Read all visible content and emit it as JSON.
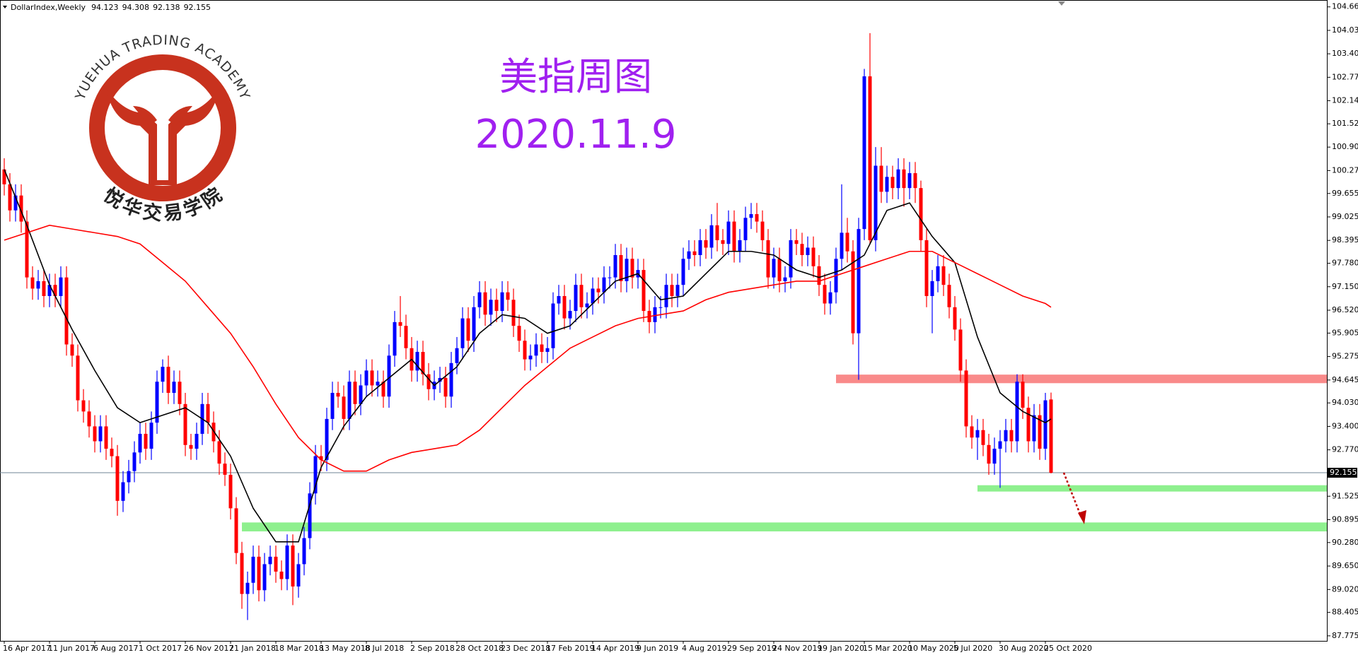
{
  "chart_data": {
    "type": "candlestick",
    "symbol": "DollarIndex,Weekly",
    "title": "美指周图",
    "subtitle": "2020.11.9",
    "categories": [
      "16 Apr 2017",
      null,
      null,
      null,
      null,
      null,
      null,
      null,
      "11 Jun 2017",
      null,
      null,
      null,
      null,
      null,
      null,
      null,
      "6 Aug 2017",
      null,
      null,
      null,
      null,
      null,
      null,
      null,
      "1 Oct 2017",
      null,
      null,
      null,
      null,
      null,
      null,
      null,
      "26 Nov 2017",
      null,
      null,
      null,
      null,
      null,
      null,
      null,
      "21 Jan 2018",
      null,
      null,
      null,
      null,
      null,
      null,
      null,
      "18 Mar 2018",
      null,
      null,
      null,
      null,
      null,
      null,
      null,
      "13 May 2018",
      null,
      null,
      null,
      null,
      null,
      null,
      null,
      "8 Jul 2018",
      null,
      null,
      null,
      null,
      null,
      null,
      null,
      "2 Sep 2018",
      null,
      null,
      null,
      null,
      null,
      null,
      null,
      "28 Oct 2018",
      null,
      null,
      null,
      null,
      null,
      null,
      null,
      "23 Dec 2018",
      null,
      null,
      null,
      null,
      null,
      null,
      null,
      "17 Feb 2019",
      null,
      null,
      null,
      null,
      null,
      null,
      null,
      "14 Apr 2019",
      null,
      null,
      null,
      null,
      null,
      null,
      null,
      "9 Jun 2019",
      null,
      null,
      null,
      null,
      null,
      null,
      null,
      "4 Aug 2019",
      null,
      null,
      null,
      null,
      null,
      null,
      null,
      "29 Sep 2019",
      null,
      null,
      null,
      null,
      null,
      null,
      null,
      "24 Nov 2019",
      null,
      null,
      null,
      null,
      null,
      null,
      null,
      "19 Jan 2020",
      null,
      null,
      null,
      null,
      null,
      null,
      null,
      "15 Mar 2020",
      null,
      null,
      null,
      null,
      null,
      null,
      null,
      "10 May 2020",
      null,
      null,
      null,
      null,
      null,
      null,
      null,
      "5 Jul 2020",
      null,
      null,
      null,
      null,
      null,
      null,
      null,
      "30 Aug 2020",
      null,
      null,
      null,
      null,
      null,
      null,
      null,
      "25 Oct 2020",
      null
    ],
    "open": [
      100.3,
      99.9,
      99.2,
      99.6,
      98.9,
      97.4,
      97.1,
      97.3,
      96.9,
      97.2,
      96.9,
      97.4,
      95.6,
      95.3,
      94.1,
      93.8,
      93.4,
      93.0,
      93.4,
      92.8,
      92.6,
      91.4,
      91.9,
      92.2,
      92.7,
      93.2,
      92.8,
      93.5,
      94.6,
      95.0,
      94.3,
      94.6,
      94.0,
      92.9,
      92.8,
      93.2,
      94.0,
      93.5,
      93.0,
      92.4,
      92.1,
      91.2,
      90.0,
      88.9,
      89.2,
      89.9,
      89.0,
      89.7,
      89.9,
      89.5,
      89.3,
      90.2,
      89.1,
      89.7,
      90.4,
      91.6,
      92.6,
      92.5,
      93.6,
      94.3,
      94.2,
      93.6,
      94.6,
      94.0,
      94.5,
      94.9,
      94.5,
      94.6,
      94.2,
      95.3,
      96.2,
      96.1,
      95.5,
      94.9,
      95.4,
      94.8,
      94.4,
      94.6,
      94.7,
      94.2,
      95.1,
      95.5,
      96.3,
      95.7,
      96.6,
      97.0,
      96.4,
      96.8,
      96.5,
      97.0,
      96.8,
      96.1,
      95.7,
      95.2,
      95.3,
      95.6,
      95.4,
      95.5,
      96.7,
      96.9,
      96.3,
      96.5,
      97.2,
      96.6,
      96.7,
      97.1,
      97.0,
      97.4,
      97.4,
      98.0,
      97.3,
      97.9,
      97.4,
      97.6,
      96.5,
      96.2,
      96.6,
      96.6,
      97.2,
      96.9,
      97.2,
      97.9,
      98.1,
      98.0,
      98.4,
      98.2,
      98.8,
      98.4,
      98.3,
      98.9,
      98.1,
      98.4,
      99.0,
      99.1,
      98.9,
      98.4,
      97.4,
      97.9,
      97.3,
      97.4,
      98.4,
      98.3,
      98.0,
      98.2,
      97.7,
      97.2,
      96.7,
      97.0,
      97.9,
      98.6,
      98.1,
      95.9,
      98.7,
      102.8,
      98.4,
      100.4,
      99.7,
      100.1,
      99.8,
      100.3,
      99.8,
      100.2,
      99.8,
      98.4,
      96.9,
      97.3,
      97.7,
      97.2,
      96.6,
      96.0,
      94.9,
      93.4,
      93.1,
      93.3,
      92.9,
      92.4,
      92.8,
      93.0,
      93.3,
      93.0,
      94.6,
      93.9,
      93.0,
      93.7,
      92.8,
      94.123
    ],
    "high": [
      100.6,
      100.2,
      99.9,
      99.9,
      99.2,
      97.7,
      97.6,
      97.6,
      97.5,
      97.5,
      97.7,
      97.7,
      95.9,
      95.6,
      94.4,
      94.1,
      93.7,
      93.7,
      93.7,
      93.1,
      92.9,
      92.2,
      92.5,
      93.0,
      93.5,
      93.5,
      93.8,
      94.9,
      95.2,
      95.3,
      94.9,
      94.9,
      94.3,
      93.2,
      93.5,
      94.3,
      94.3,
      93.8,
      93.3,
      92.7,
      92.4,
      91.5,
      90.3,
      89.5,
      90.2,
      90.2,
      90.0,
      90.2,
      90.2,
      89.8,
      90.5,
      90.5,
      90.0,
      90.7,
      91.9,
      92.9,
      92.9,
      93.9,
      94.6,
      94.6,
      94.5,
      94.9,
      94.9,
      94.8,
      95.2,
      95.2,
      94.9,
      94.9,
      95.6,
      96.5,
      96.9,
      96.4,
      95.8,
      95.7,
      95.7,
      95.1,
      94.9,
      95.0,
      95.0,
      95.4,
      95.8,
      96.6,
      96.6,
      96.9,
      97.3,
      97.3,
      97.1,
      97.1,
      97.3,
      97.3,
      97.1,
      96.4,
      96.0,
      95.6,
      95.9,
      95.9,
      95.8,
      97.0,
      97.2,
      97.2,
      96.8,
      97.5,
      97.5,
      97.0,
      97.4,
      97.4,
      97.7,
      97.7,
      98.3,
      98.3,
      98.2,
      98.2,
      97.9,
      97.9,
      96.8,
      96.9,
      96.9,
      97.5,
      97.5,
      97.5,
      98.2,
      98.4,
      98.4,
      98.7,
      98.7,
      99.1,
      99.4,
      98.7,
      99.2,
      99.2,
      98.7,
      99.3,
      99.4,
      99.4,
      99.2,
      98.7,
      98.2,
      98.2,
      97.7,
      98.7,
      98.7,
      98.6,
      98.5,
      98.5,
      98.0,
      97.5,
      97.3,
      98.2,
      99.9,
      99.0,
      98.4,
      99.0,
      103.0,
      103.96,
      100.9,
      100.9,
      100.4,
      100.4,
      100.6,
      100.6,
      100.5,
      100.5,
      100.0,
      98.7,
      97.6,
      98.0,
      98.0,
      97.5,
      96.9,
      96.3,
      95.2,
      93.7,
      93.6,
      93.6,
      93.2,
      93.1,
      93.3,
      93.6,
      93.6,
      94.8,
      94.8,
      94.2,
      94.0,
      94.0,
      94.3,
      94.308
    ],
    "low": [
      99.6,
      98.9,
      98.9,
      98.6,
      97.1,
      96.8,
      96.8,
      96.6,
      96.6,
      96.6,
      96.6,
      95.3,
      95.0,
      93.8,
      93.5,
      93.1,
      92.7,
      92.7,
      92.5,
      92.3,
      91.0,
      91.1,
      91.6,
      91.9,
      92.4,
      92.5,
      92.5,
      93.2,
      94.3,
      94.0,
      94.0,
      93.7,
      92.6,
      92.5,
      92.5,
      92.9,
      93.2,
      92.7,
      92.1,
      91.8,
      90.9,
      89.7,
      88.5,
      88.2,
      88.9,
      88.7,
      88.7,
      89.4,
      89.2,
      89.0,
      89.0,
      88.6,
      88.8,
      89.4,
      90.1,
      91.3,
      92.2,
      92.2,
      93.3,
      93.9,
      93.3,
      93.3,
      93.7,
      93.7,
      94.2,
      94.2,
      94.2,
      93.9,
      93.9,
      95.0,
      95.8,
      95.2,
      94.6,
      94.6,
      94.5,
      94.1,
      94.1,
      94.3,
      93.9,
      93.9,
      94.8,
      95.2,
      95.4,
      95.4,
      96.3,
      96.1,
      96.1,
      96.2,
      96.2,
      96.5,
      95.8,
      95.4,
      94.9,
      94.9,
      95.0,
      95.1,
      95.1,
      95.2,
      96.4,
      96.0,
      96.0,
      96.2,
      96.3,
      96.3,
      96.4,
      96.7,
      96.7,
      97.1,
      97.1,
      97.0,
      97.0,
      97.1,
      97.1,
      96.2,
      95.9,
      95.9,
      96.3,
      96.3,
      96.6,
      96.6,
      96.9,
      97.6,
      97.7,
      97.7,
      97.9,
      97.9,
      98.1,
      98.0,
      98.0,
      97.8,
      97.8,
      98.1,
      98.7,
      98.6,
      98.1,
      97.1,
      97.1,
      97.0,
      97.0,
      97.1,
      98.0,
      97.7,
      97.7,
      97.4,
      96.9,
      96.4,
      96.4,
      96.7,
      97.6,
      97.8,
      95.6,
      94.65,
      98.4,
      98.3,
      98.1,
      99.4,
      99.4,
      99.5,
      99.5,
      99.3,
      99.5,
      99.4,
      98.1,
      96.6,
      95.9,
      97.0,
      96.9,
      96.3,
      95.7,
      94.6,
      93.1,
      92.8,
      92.5,
      92.6,
      92.1,
      92.1,
      91.75,
      92.7,
      92.7,
      92.7,
      93.6,
      92.7,
      92.7,
      92.5,
      92.5,
      92.138
    ],
    "close": [
      99.9,
      99.2,
      99.6,
      98.9,
      97.4,
      97.1,
      97.3,
      96.9,
      97.2,
      96.9,
      97.4,
      95.6,
      95.3,
      94.1,
      93.8,
      93.4,
      93.0,
      93.4,
      92.8,
      92.6,
      91.4,
      91.9,
      92.2,
      92.7,
      93.2,
      92.8,
      93.5,
      94.6,
      95.0,
      94.3,
      94.6,
      94.0,
      92.9,
      92.8,
      93.2,
      94.0,
      93.5,
      93.0,
      92.4,
      92.1,
      91.2,
      90.0,
      88.9,
      89.2,
      89.9,
      89.0,
      89.7,
      89.9,
      89.5,
      89.3,
      90.2,
      89.1,
      89.7,
      90.4,
      91.6,
      92.6,
      92.5,
      93.6,
      94.3,
      94.2,
      93.6,
      94.6,
      94.0,
      94.5,
      94.9,
      94.5,
      94.6,
      94.2,
      95.3,
      96.2,
      96.1,
      95.5,
      94.9,
      95.4,
      94.8,
      94.4,
      94.6,
      94.7,
      94.2,
      95.1,
      95.5,
      96.3,
      95.7,
      96.6,
      97.0,
      96.4,
      96.8,
      96.5,
      97.0,
      96.8,
      96.1,
      95.7,
      95.2,
      95.3,
      95.6,
      95.4,
      95.5,
      96.7,
      96.9,
      96.3,
      96.5,
      97.2,
      96.6,
      96.7,
      97.1,
      97.0,
      97.4,
      97.4,
      98.0,
      97.3,
      97.9,
      97.4,
      97.6,
      96.5,
      96.2,
      96.6,
      96.6,
      97.2,
      96.9,
      97.2,
      97.9,
      98.1,
      98.0,
      98.4,
      98.2,
      98.8,
      98.4,
      98.3,
      98.9,
      98.1,
      98.4,
      99.0,
      99.1,
      98.9,
      98.4,
      97.4,
      97.9,
      97.3,
      97.4,
      98.4,
      98.3,
      98.0,
      98.2,
      97.7,
      97.2,
      96.7,
      97.0,
      97.9,
      98.6,
      98.1,
      95.9,
      98.7,
      102.8,
      98.4,
      100.4,
      99.7,
      100.1,
      99.8,
      100.3,
      99.8,
      100.2,
      99.8,
      98.4,
      96.9,
      97.3,
      97.7,
      97.2,
      96.6,
      96.0,
      94.9,
      93.4,
      93.1,
      93.3,
      92.9,
      92.4,
      92.8,
      93.0,
      93.3,
      93.0,
      94.6,
      93.9,
      93.0,
      93.7,
      92.8,
      94.1,
      92.155
    ],
    "up_color": "#0000ff",
    "down_color": "#ff0000",
    "series": [
      {
        "color": "#000000",
        "x": [
          0,
          4,
          8,
          12,
          16,
          20,
          24,
          28,
          32,
          36,
          40,
          44,
          48,
          52,
          56,
          60,
          64,
          68,
          72,
          76,
          80,
          84,
          88,
          92,
          96,
          100,
          104,
          108,
          112,
          116,
          120,
          124,
          128,
          132,
          136,
          140,
          144,
          148,
          152,
          156,
          160,
          164,
          168,
          172,
          176,
          180,
          184,
          185
        ],
        "values": [
          100.3,
          98.8,
          97.2,
          96.0,
          94.9,
          93.9,
          93.5,
          93.7,
          93.9,
          93.5,
          92.6,
          91.2,
          90.3,
          90.3,
          92.3,
          93.4,
          94.2,
          94.7,
          95.2,
          94.5,
          95.0,
          95.9,
          96.4,
          96.3,
          95.9,
          96.1,
          96.7,
          97.3,
          97.5,
          96.8,
          96.9,
          97.5,
          98.1,
          98.1,
          98.0,
          97.6,
          97.4,
          97.6,
          98.0,
          99.2,
          99.4,
          98.5,
          97.8,
          95.8,
          94.3,
          93.8,
          93.5,
          93.6
        ]
      },
      {
        "color": "#ff0000",
        "x": [
          0,
          4,
          8,
          12,
          16,
          20,
          24,
          28,
          32,
          36,
          40,
          44,
          48,
          52,
          56,
          60,
          64,
          68,
          72,
          76,
          80,
          84,
          88,
          92,
          96,
          100,
          104,
          108,
          112,
          116,
          120,
          124,
          128,
          132,
          136,
          140,
          144,
          148,
          152,
          156,
          160,
          164,
          168,
          172,
          176,
          180,
          184,
          185
        ],
        "values": [
          98.4,
          98.6,
          98.8,
          98.7,
          98.6,
          98.5,
          98.3,
          97.8,
          97.3,
          96.6,
          95.9,
          95.0,
          94.0,
          93.1,
          92.5,
          92.2,
          92.2,
          92.5,
          92.7,
          92.8,
          92.9,
          93.3,
          93.9,
          94.5,
          95.0,
          95.5,
          95.8,
          96.1,
          96.3,
          96.4,
          96.5,
          96.8,
          97.0,
          97.1,
          97.2,
          97.3,
          97.3,
          97.5,
          97.7,
          97.9,
          98.1,
          98.1,
          97.8,
          97.5,
          97.2,
          96.9,
          96.7,
          96.6
        ]
      }
    ],
    "zones": [
      {
        "from": 94.56,
        "to": 94.79,
        "start": 147,
        "color": "#f98a8a"
      },
      {
        "from": 91.65,
        "to": 91.82,
        "start": 172,
        "color": "#8ef08e"
      },
      {
        "from": 90.58,
        "to": 90.82,
        "start": 42,
        "color": "#8ef08e"
      }
    ],
    "ylim": [
      87.64,
      104.85
    ],
    "yticks": [
      104.665,
      104.035,
      103.405,
      102.775,
      102.145,
      101.525,
      {
        "value": 100.9,
        "label": "100.900"
      },
      {
        "value": 100.27,
        "label": "100.270"
      },
      99.655,
      99.025,
      98.395,
      {
        "value": 97.78,
        "label": "97.780"
      },
      {
        "value": 97.15,
        "label": "97.150"
      },
      {
        "value": 96.52,
        "label": "96.520"
      },
      95.905,
      95.275,
      94.645,
      {
        "value": 94.03,
        "label": "94.030"
      },
      {
        "value": 93.4,
        "label": "93.400"
      },
      {
        "value": 92.77,
        "label": "92.770"
      },
      91.525,
      90.895,
      {
        "value": 90.28,
        "label": "90.280"
      },
      {
        "value": 89.65,
        "label": "89.650"
      },
      {
        "value": 89.02,
        "label": "89.020"
      },
      88.405,
      87.775
    ]
  },
  "watermark": {
    "en": "YUEHUA TRADING ACADEMY",
    "cn": "悦华交易学院"
  }
}
